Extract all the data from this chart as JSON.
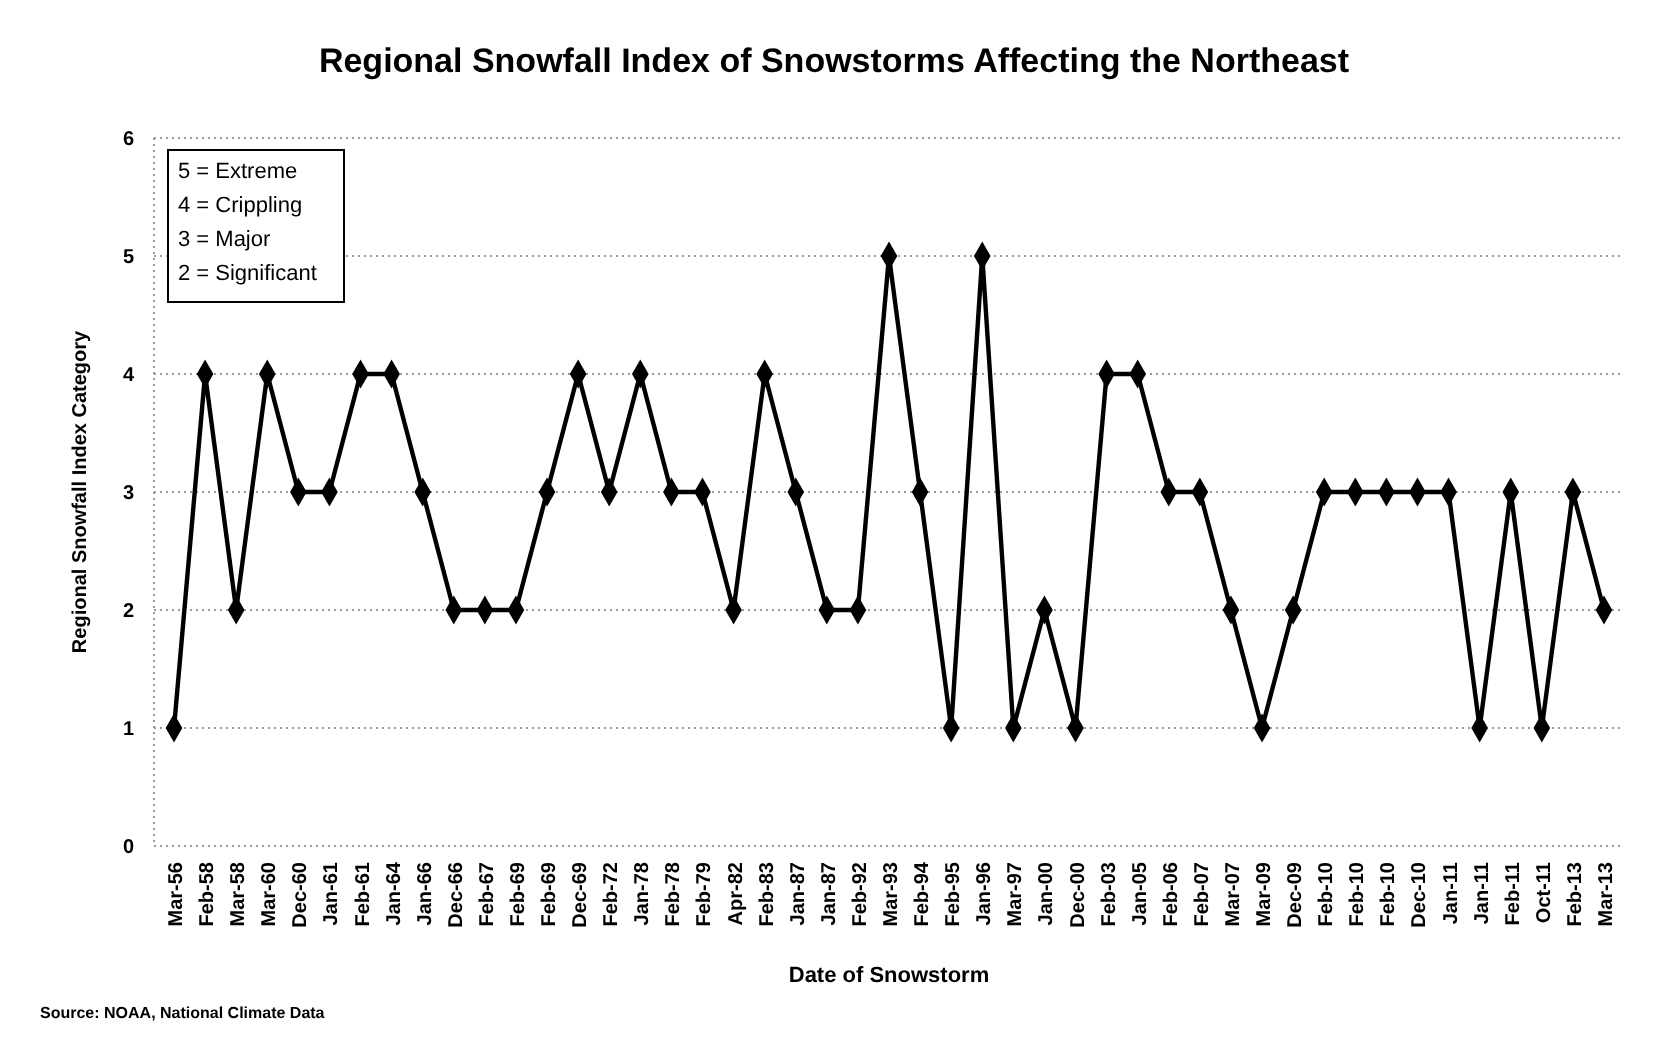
{
  "chart_data": {
    "type": "line",
    "title": "Regional Snowfall Index of Snowstorms Affecting the Northeast",
    "xlabel": "Date of Snowstorm",
    "ylabel": "Regional Snowfall Index Category",
    "categories": [
      "Mar-56",
      "Feb-58",
      "Mar-58",
      "Mar-60",
      "Dec-60",
      "Jan-61",
      "Feb-61",
      "Jan-64",
      "Jan-66",
      "Dec-66",
      "Feb-67",
      "Feb-69",
      "Feb-69",
      "Dec-69",
      "Feb-72",
      "Jan-78",
      "Feb-78",
      "Feb-79",
      "Apr-82",
      "Feb-83",
      "Jan-87",
      "Jan-87",
      "Feb-92",
      "Mar-93",
      "Feb-94",
      "Feb-95",
      "Jan-96",
      "Mar-97",
      "Jan-00",
      "Dec-00",
      "Feb-03",
      "Jan-05",
      "Feb-06",
      "Feb-07",
      "Mar-07",
      "Mar-09",
      "Dec-09",
      "Feb-10",
      "Feb-10",
      "Feb-10",
      "Dec-10",
      "Jan-11",
      "Jan-11",
      "Feb-11",
      "Oct-11",
      "Feb-13",
      "Mar-13"
    ],
    "series": [
      {
        "color": "#000000",
        "values": [
          1,
          4,
          2,
          4,
          3,
          3,
          4,
          4,
          3,
          2,
          2,
          2,
          3,
          4,
          3,
          4,
          3,
          3,
          2,
          4,
          3,
          2,
          2,
          5,
          3,
          1,
          5,
          1,
          2,
          1,
          4,
          4,
          3,
          3,
          2,
          1,
          2,
          3,
          3,
          3,
          3,
          3,
          1,
          3,
          1,
          3,
          2
        ]
      }
    ],
    "ylim": [
      0,
      6
    ],
    "yticks": [
      0,
      1,
      2,
      3,
      4,
      5,
      6
    ],
    "grid": "y",
    "marker": "diamond",
    "line_style": "solid",
    "annotations": [
      "5 = Extreme",
      "4 = Crippling",
      "3 = Major",
      "2 = Significant",
      "Source: NOAA, National Climate Data"
    ]
  }
}
